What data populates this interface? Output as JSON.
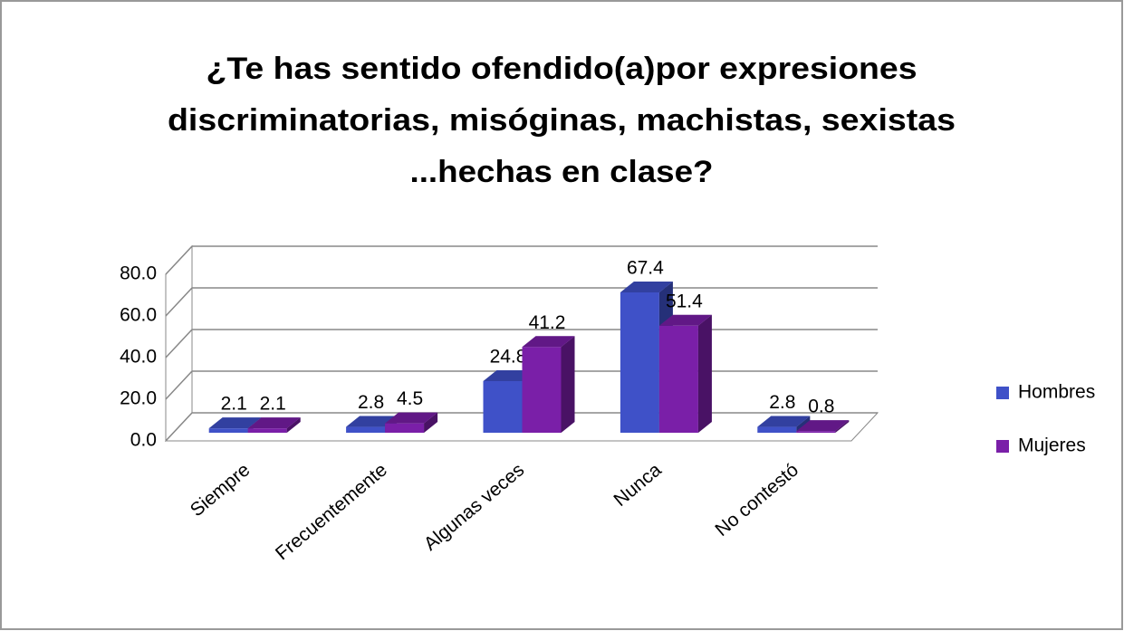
{
  "chart_data": {
    "type": "bar3d",
    "title": [
      "¿Te has sentido ofendido(a)por expresiones",
      "discriminatorias, misóginas, machistas, sexistas",
      "...hechas en clase?"
    ],
    "categories": [
      "Siempre",
      "Frecuentemente",
      "Algunas veces",
      "Nunca",
      "No contestó"
    ],
    "series": [
      {
        "name": "Hombres",
        "color": "#3f51c8",
        "values": [
          2.1,
          2.8,
          24.8,
          67.4,
          2.8
        ]
      },
      {
        "name": "Mujeres",
        "color": "#7a1fa8",
        "values": [
          2.1,
          4.5,
          41.2,
          51.4,
          0.8
        ]
      }
    ],
    "ylim": [
      0,
      80
    ],
    "yticks": [
      {
        "value": 0,
        "label": "0.0"
      },
      {
        "value": 20,
        "label": "20.0"
      },
      {
        "value": 40,
        "label": "40.0"
      },
      {
        "value": 60,
        "label": "60.0"
      },
      {
        "value": 80,
        "label": "80.0"
      }
    ],
    "grid": true,
    "legend": "right"
  }
}
